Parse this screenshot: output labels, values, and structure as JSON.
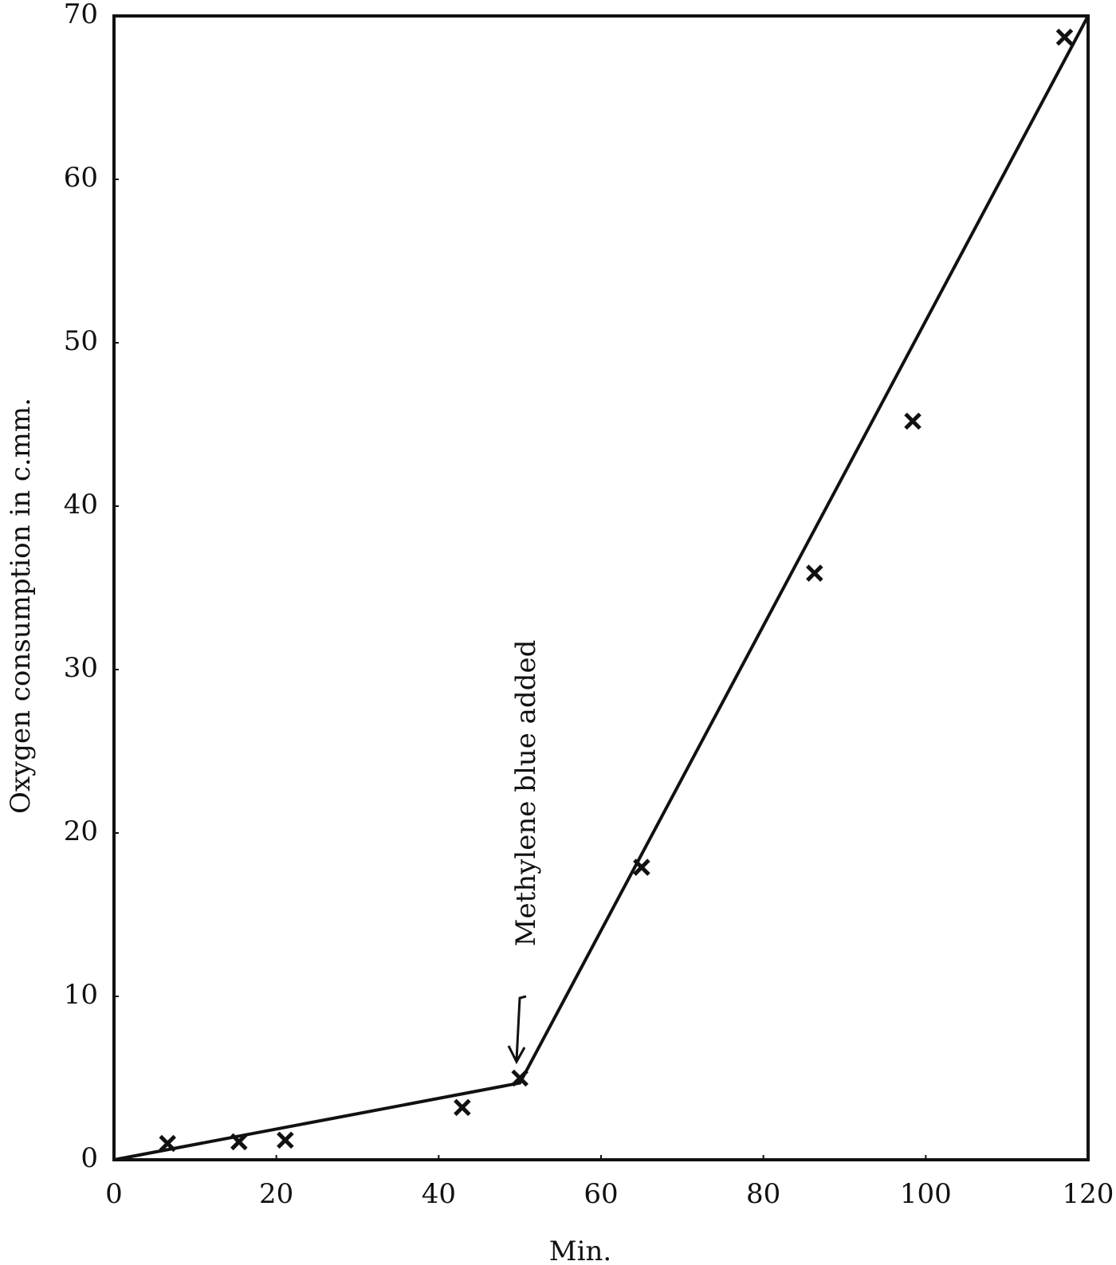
{
  "chart_data": {
    "type": "scatter",
    "xlabel": "Min.",
    "ylabel": "Oxygen consumption in c.mm.",
    "annotation": "Methylene blue added",
    "x": [
      6.6,
      15.4,
      21.1,
      42.9,
      50.0,
      65.0,
      86.3,
      98.4,
      117.1
    ],
    "values": [
      1.0,
      1.1,
      1.2,
      3.2,
      5.0,
      17.9,
      35.9,
      45.2,
      68.7
    ],
    "color": "#111111",
    "fit": {
      "x": [
        0,
        50,
        120
      ],
      "values": [
        0,
        4.7,
        70
      ]
    },
    "xlim": [
      0,
      120
    ],
    "xticks": [
      0,
      20,
      40,
      60,
      80,
      100,
      120
    ],
    "ylim": [
      0,
      70
    ],
    "yticks": [
      0,
      10,
      20,
      30,
      40,
      50,
      60,
      70
    ],
    "grid": false
  }
}
